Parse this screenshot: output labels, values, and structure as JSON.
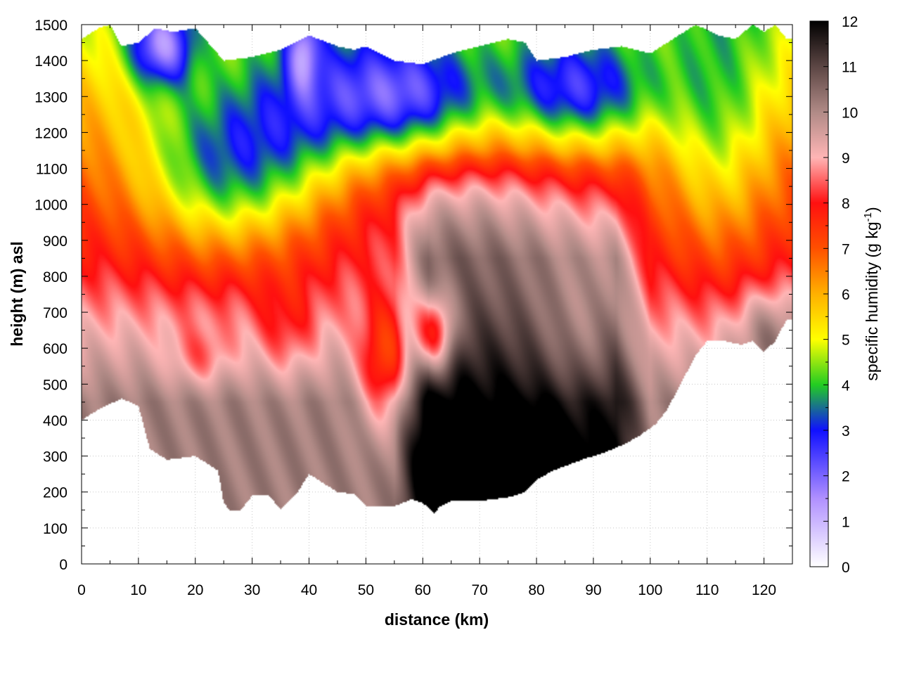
{
  "chart_data": {
    "type": "heatmap",
    "title": "",
    "xlabel": "distance (km)",
    "ylabel": "height (m) asl",
    "colorbar_label": "specific humidity (g kg",
    "colorbar_label_exponent": "-1",
    "colorbar_label_close": ")",
    "xlim": [
      0,
      125
    ],
    "ylim": [
      0,
      1500
    ],
    "clim": [
      0,
      12
    ],
    "x_ticks": [
      0,
      10,
      20,
      30,
      40,
      50,
      60,
      70,
      80,
      90,
      100,
      110,
      120
    ],
    "y_ticks": [
      0,
      100,
      200,
      300,
      400,
      500,
      600,
      700,
      800,
      900,
      1000,
      1100,
      1200,
      1300,
      1400,
      1500
    ],
    "c_ticks": [
      0,
      1,
      2,
      3,
      4,
      5,
      6,
      7,
      8,
      9,
      10,
      11,
      12
    ],
    "grid": true,
    "colormap": [
      {
        "v": 0,
        "color": "#ffffff"
      },
      {
        "v": 1.5,
        "color": "#b090ff"
      },
      {
        "v": 3,
        "color": "#1010ff"
      },
      {
        "v": 4,
        "color": "#22cc22"
      },
      {
        "v": 5,
        "color": "#ffff00"
      },
      {
        "v": 6,
        "color": "#ffb000"
      },
      {
        "v": 7,
        "color": "#ff5000"
      },
      {
        "v": 8,
        "color": "#ff1010"
      },
      {
        "v": 9,
        "color": "#ffb5b5"
      },
      {
        "v": 10,
        "color": "#b08a86"
      },
      {
        "v": 11,
        "color": "#5c4644"
      },
      {
        "v": 12,
        "color": "#000000"
      }
    ],
    "bottom_boundary": {
      "x": [
        0,
        3,
        7,
        10,
        12,
        15,
        20,
        24,
        25,
        26,
        28,
        30,
        33,
        35,
        38,
        40,
        45,
        48,
        50,
        55,
        58,
        60,
        62,
        63,
        65,
        70,
        75,
        78,
        80,
        83,
        88,
        92,
        95,
        98,
        101,
        103,
        105,
        108,
        110,
        113,
        116,
        118,
        120,
        122,
        124
      ],
      "y": [
        400,
        430,
        460,
        440,
        320,
        290,
        300,
        260,
        170,
        150,
        150,
        190,
        190,
        150,
        200,
        250,
        200,
        195,
        160,
        160,
        180,
        170,
        140,
        160,
        175,
        175,
        185,
        200,
        235,
        260,
        290,
        310,
        330,
        355,
        390,
        430,
        490,
        580,
        620,
        620,
        610,
        620,
        590,
        620,
        680
      ]
    },
    "top_boundary": {
      "x": [
        0,
        3,
        5,
        7,
        10,
        13,
        16,
        20,
        25,
        30,
        35,
        40,
        45,
        48,
        50,
        55,
        60,
        65,
        70,
        75,
        78,
        80,
        85,
        90,
        95,
        100,
        103,
        105,
        108,
        112,
        115,
        118,
        120,
        122,
        124
      ],
      "y": [
        1460,
        1490,
        1500,
        1440,
        1450,
        1490,
        1480,
        1490,
        1400,
        1410,
        1430,
        1470,
        1440,
        1430,
        1440,
        1400,
        1390,
        1420,
        1440,
        1460,
        1450,
        1400,
        1410,
        1430,
        1440,
        1420,
        1450,
        1470,
        1500,
        1470,
        1460,
        1500,
        1480,
        1500,
        1460
      ]
    },
    "features": [
      {
        "x": 25,
        "y": 1100,
        "sx": 11,
        "sy": 170,
        "amp": -3.3
      },
      {
        "x": 40,
        "y": 1250,
        "sx": 9,
        "sy": 170,
        "amp": -1.8
      },
      {
        "x": 57,
        "y": 1290,
        "sx": 10,
        "sy": 120,
        "amp": -3.6
      },
      {
        "x": 87,
        "y": 1310,
        "sx": 10,
        "sy": 110,
        "amp": -3.2
      },
      {
        "x": 14,
        "y": 1440,
        "sx": 4,
        "sy": 80,
        "amp": -3.4
      },
      {
        "x": 39,
        "y": 1430,
        "sx": 2,
        "sy": 80,
        "amp": -2.4
      },
      {
        "x": 112,
        "y": 1180,
        "sx": 7,
        "sy": 260,
        "amp": -1.9
      },
      {
        "x": 62,
        "y": 640,
        "sx": 2.5,
        "sy": 80,
        "amp": -3.2
      },
      {
        "x": 53,
        "y": 550,
        "sx": 3,
        "sy": 120,
        "amp": -2.3
      },
      {
        "x": 21,
        "y": 570,
        "sx": 4,
        "sy": 60,
        "amp": -1.0
      },
      {
        "x": 36,
        "y": 650,
        "sx": 4,
        "sy": 100,
        "amp": -1.0
      },
      {
        "x": 88,
        "y": 600,
        "sx": 6,
        "sy": 150,
        "amp": -1.0
      },
      {
        "x": 66,
        "y": 1020,
        "sx": 14,
        "sy": 150,
        "amp": 1.2
      },
      {
        "x": 80,
        "y": 260,
        "sx": 5,
        "sy": 90,
        "amp": 1.6
      },
      {
        "x": 62,
        "y": 260,
        "sx": 4,
        "sy": 120,
        "amp": 0.8
      },
      {
        "x": 121,
        "y": 650,
        "sx": 4,
        "sy": 80,
        "amp": 1.2
      }
    ]
  }
}
